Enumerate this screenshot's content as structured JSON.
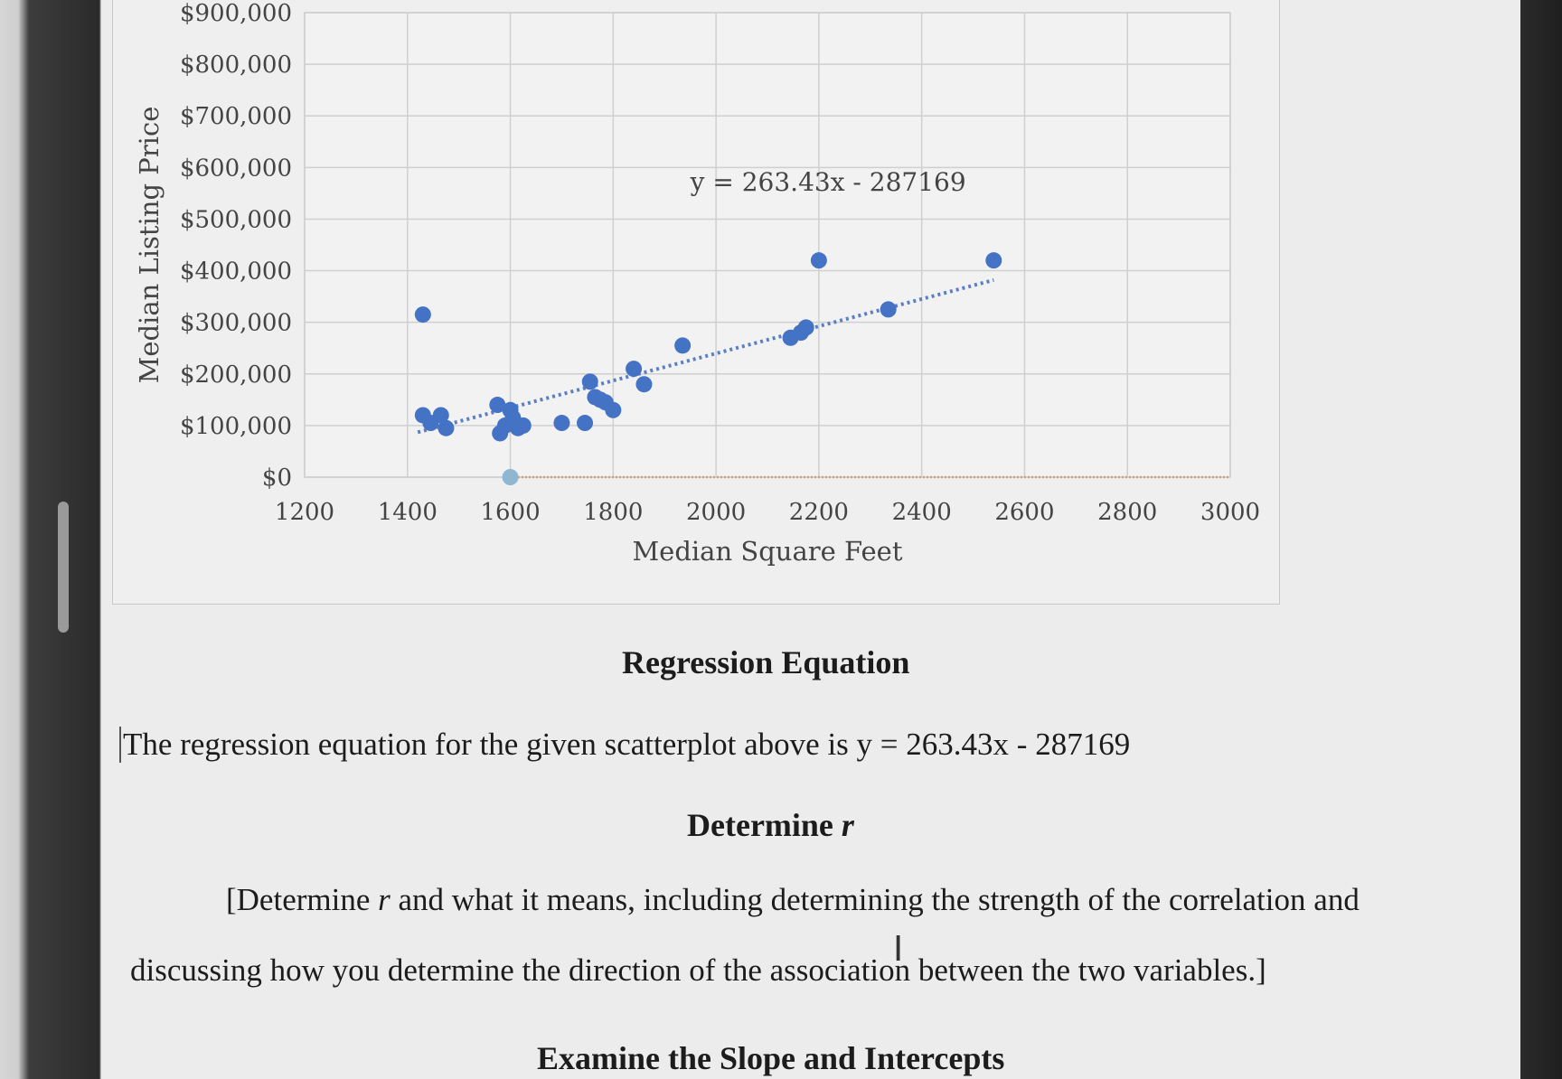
{
  "chart_data": {
    "type": "scatter",
    "title": "",
    "xlabel": "Median Square Feet",
    "ylabel": "Median Listing Price",
    "xlim": [
      1200,
      3000
    ],
    "ylim": [
      0,
      900000
    ],
    "x_ticks": [
      "1200",
      "1400",
      "1600",
      "1800",
      "2000",
      "2200",
      "2400",
      "2600",
      "2800",
      "3000"
    ],
    "y_ticks": [
      "$0",
      "$100,000",
      "$200,000",
      "$300,000",
      "$400,000",
      "$500,000",
      "$600,000",
      "$700,000",
      "$800,000",
      "$900,000"
    ],
    "grid": true,
    "trendline": {
      "type": "linear",
      "equation": "y = 263.43x - 287169",
      "slope": 263.43,
      "intercept": -287169,
      "style": "dotted",
      "x_range": [
        1420,
        2540
      ]
    },
    "series": [
      {
        "color": "#4472c4",
        "points": [
          {
            "x": 1430,
            "y": 315000
          },
          {
            "x": 1430,
            "y": 120000
          },
          {
            "x": 1445,
            "y": 105000
          },
          {
            "x": 1465,
            "y": 120000
          },
          {
            "x": 1475,
            "y": 95000
          },
          {
            "x": 1575,
            "y": 140000
          },
          {
            "x": 1580,
            "y": 85000
          },
          {
            "x": 1590,
            "y": 100000
          },
          {
            "x": 1600,
            "y": 130000
          },
          {
            "x": 1605,
            "y": 115000
          },
          {
            "x": 1615,
            "y": 95000
          },
          {
            "x": 1625,
            "y": 100000
          },
          {
            "x": 1700,
            "y": 105000
          },
          {
            "x": 1745,
            "y": 105000
          },
          {
            "x": 1755,
            "y": 185000
          },
          {
            "x": 1765,
            "y": 155000
          },
          {
            "x": 1775,
            "y": 150000
          },
          {
            "x": 1785,
            "y": 145000
          },
          {
            "x": 1800,
            "y": 130000
          },
          {
            "x": 1840,
            "y": 210000
          },
          {
            "x": 1860,
            "y": 180000
          },
          {
            "x": 1935,
            "y": 255000
          },
          {
            "x": 2145,
            "y": 270000
          },
          {
            "x": 2165,
            "y": 280000
          },
          {
            "x": 2175,
            "y": 290000
          },
          {
            "x": 2200,
            "y": 420000
          },
          {
            "x": 2335,
            "y": 325000
          },
          {
            "x": 2540,
            "y": 420000
          }
        ]
      },
      {
        "color": "#8fb8d0",
        "points": [
          {
            "x": 1600,
            "y": 0
          }
        ]
      }
    ]
  },
  "document": {
    "heading_regression": "Regression Equation",
    "regression_sentence": "The regression equation for the given scatterplot above is y = 263.43x - 287169",
    "heading_determine_r": "Determine r",
    "prompt_line1": "[Determine r and what it means, including determining the strength of the correlation and",
    "prompt_line2": "discussing how you determine the direction of the association between the two variables.]",
    "heading_slope": "Examine the Slope and Intercepts"
  }
}
